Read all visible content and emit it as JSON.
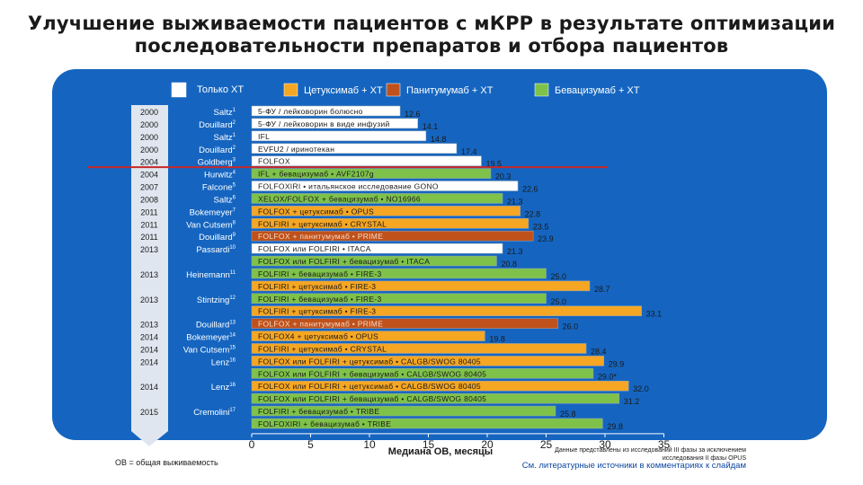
{
  "title": {
    "line1": "Улучшение выживаемости пациентов с мКРР в результате оптимизации",
    "line2": "последовательности препаратов и отбора пациентов"
  },
  "colors": {
    "chemo": "#ffffff",
    "cetuximab": "#f5a623",
    "panitumumab": "#c0511a",
    "bevacizumab": "#7ec24a",
    "panel": "#1565c0",
    "divider": "#c62828"
  },
  "chart_data": {
    "type": "bar",
    "orientation": "horizontal",
    "xlabel": "Медиана ОВ, месяцы",
    "xlim": [
      0,
      35
    ],
    "xticks": [
      0,
      5,
      10,
      15,
      20,
      25,
      30,
      35
    ],
    "legend": [
      {
        "key": "chemo",
        "label": "Только ХТ"
      },
      {
        "key": "cetuximab",
        "label": "Цетуксимаб + ХТ"
      },
      {
        "key": "panitumumab",
        "label": "Панитумумаб + ХТ"
      },
      {
        "key": "bevacizumab",
        "label": "Бевацизумаб + ХТ"
      }
    ],
    "rows": [
      {
        "year": "2000",
        "author": "Saltz",
        "ref": "1",
        "label": "5-ФУ / лейковорин болюсно",
        "value": 12.6,
        "value_label": "12.6",
        "type": "chemo"
      },
      {
        "year": "2000",
        "author": "Douillard",
        "ref": "2",
        "label": "5-ФУ / лейковорин в виде инфузий",
        "value": 14.1,
        "value_label": "14.1",
        "type": "chemo"
      },
      {
        "year": "2000",
        "author": "Saltz",
        "ref": "1",
        "label": "IFL",
        "value": 14.8,
        "value_label": "14.8",
        "type": "chemo"
      },
      {
        "year": "2000",
        "author": "Douillard",
        "ref": "2",
        "label": "EVFU2 / иринотекан",
        "value": 17.4,
        "value_label": "17.4",
        "type": "chemo"
      },
      {
        "year": "2004",
        "author": "Goldberg",
        "ref": "3",
        "label": "FOLFOX",
        "value": 19.5,
        "value_label": "19.5",
        "type": "chemo"
      },
      {
        "year": "2004",
        "author": "Hurwitz",
        "ref": "4",
        "label": "IFL + бевацизумаб • AVF2107g",
        "value": 20.3,
        "value_label": "20.3",
        "type": "bevacizumab"
      },
      {
        "year": "2007",
        "author": "Falcone",
        "ref": "5",
        "label": "FOLFOXIRI • итальянское исследование GONO",
        "value": 22.6,
        "value_label": "22.6",
        "type": "chemo"
      },
      {
        "year": "2008",
        "author": "Saltz",
        "ref": "6",
        "label": "XELOX/FOLFOX + бевацизумаб • NO16966",
        "value": 21.3,
        "value_label": "21.3",
        "type": "bevacizumab"
      },
      {
        "year": "2011",
        "author": "Bokemeyer",
        "ref": "7",
        "label": "FOLFOX + цетуксимаб • OPUS",
        "value": 22.8,
        "value_label": "22.8",
        "type": "cetuximab"
      },
      {
        "year": "2011",
        "author": "Van Cutsem",
        "ref": "8",
        "label": "FOLFIRI + цетуксимаб • CRYSTAL",
        "value": 23.5,
        "value_label": "23.5",
        "type": "cetuximab"
      },
      {
        "year": "2011",
        "author": "Douillard",
        "ref": "9",
        "label": "FOLFOX + панитумумаб • PRIME",
        "value": 23.9,
        "value_label": "23.9",
        "type": "panitumumab"
      },
      {
        "year": "2013",
        "author": "Passardi",
        "ref": "10",
        "label": "FOLFOX или FOLFIRI • ITACA",
        "value": 21.3,
        "value_label": "21.3",
        "type": "chemo"
      },
      {
        "year": "",
        "author": "",
        "ref": "",
        "label": "FOLFOX или FOLFIRI + бевацизумаб • ITACA",
        "value": 20.8,
        "value_label": "20.8",
        "type": "bevacizumab"
      },
      {
        "year": "2013",
        "author": "Heinemann",
        "ref": "11",
        "label": "FOLFIRI + бевацизумаб • FIRE-3",
        "value": 25.0,
        "value_label": "25.0",
        "type": "bevacizumab"
      },
      {
        "year": "",
        "author": "",
        "ref": "",
        "label": "FOLFIRI + цетуксимаб • FIRE-3",
        "value": 28.7,
        "value_label": "28.7",
        "type": "cetuximab"
      },
      {
        "year": "2013",
        "author": "Stintzing",
        "ref": "12",
        "label": "FOLFIRI + бевацизумаб • FIRE-3",
        "value": 25.0,
        "value_label": "25.0",
        "type": "bevacizumab"
      },
      {
        "year": "",
        "author": "",
        "ref": "",
        "label": "FOLFIRI + цетуксимаб • FIRE-3",
        "value": 33.1,
        "value_label": "33.1",
        "type": "cetuximab"
      },
      {
        "year": "2013",
        "author": "Douillard",
        "ref": "13",
        "label": "FOLFOX + панитумумаб • PRIME",
        "value": 26.0,
        "value_label": "26.0",
        "type": "panitumumab"
      },
      {
        "year": "2014",
        "author": "Bokemeyer",
        "ref": "14",
        "label": "FOLFOX4 + цетуксимаб • OPUS",
        "value": 19.8,
        "value_label": "19.8",
        "type": "cetuximab"
      },
      {
        "year": "2014",
        "author": "Van Cutsem",
        "ref": "15",
        "label": "FOLFIRI + цетуксимаб • CRYSTAL",
        "value": 28.4,
        "value_label": "28.4",
        "type": "cetuximab"
      },
      {
        "year": "2014",
        "author": "Lenz",
        "ref": "16",
        "label": "FOLFOX или FOLFIRI + цетуксимаб • CALGB/SWOG 80405",
        "value": 29.9,
        "value_label": "29.9",
        "type": "cetuximab"
      },
      {
        "year": "",
        "author": "",
        "ref": "",
        "label": "FOLFOX или FOLFIRI + бевацизумаб • CALGB/SWOG 80405",
        "value": 29.0,
        "value_label": "29.0*",
        "type": "bevacizumab"
      },
      {
        "year": "2014",
        "author": "Lenz",
        "ref": "16",
        "label": "FOLFOX или FOLFIRI + цетуксимаб • CALGB/SWOG 80405",
        "value": 32.0,
        "value_label": "32.0",
        "type": "cetuximab"
      },
      {
        "year": "",
        "author": "",
        "ref": "",
        "label": "FOLFOX или FOLFIRI + бевацизумаб • CALGB/SWOG 80405",
        "value": 31.2,
        "value_label": "31.2",
        "type": "bevacizumab"
      },
      {
        "year": "2015",
        "author": "Cremolini",
        "ref": "17",
        "label": "FOLFIRI + бевацизумаб • TRIBE",
        "value": 25.8,
        "value_label": "25.8",
        "type": "bevacizumab"
      },
      {
        "year": "",
        "author": "",
        "ref": "",
        "label": "FOLFOXIRI + бевацизумаб • TRIBE",
        "value": 29.8,
        "value_label": "29.8",
        "type": "bevacizumab"
      }
    ]
  },
  "footnote": "ОВ = общая выживаемость",
  "source_note_1": "Данные представлены из исследований III фазы за исключением исследования II фазы OPUS",
  "source_note_2": "См. литературные источники в комментариях к слайдам"
}
